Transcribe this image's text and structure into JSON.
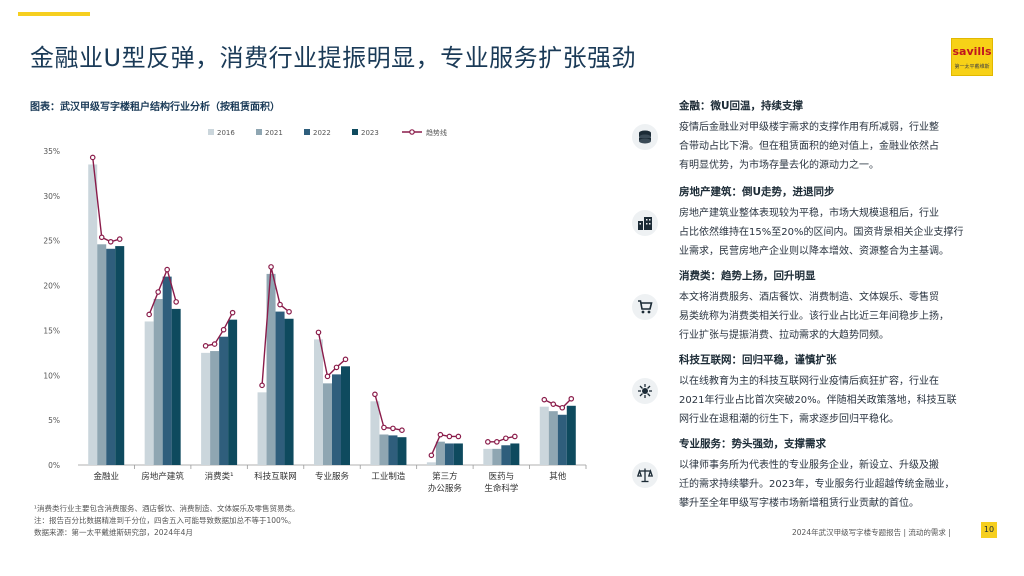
{
  "title": "金融业U型反弹，消费行业提振明显，专业服务扩张强劲",
  "logo": {
    "brand": "savills",
    "sub": "第一太平戴维斯"
  },
  "chart_caption": "图表：武汉甲级写字楼租户结构行业分析（按租赁面积）",
  "chart_data": {
    "type": "bar",
    "title": "图表：武汉甲级写字楼租户结构行业分析（按租赁面积）",
    "categories": [
      [
        "金融业"
      ],
      [
        "房地产建筑"
      ],
      [
        "消费类¹"
      ],
      [
        "科技互联网"
      ],
      [
        "专业服务"
      ],
      [
        "工业制造"
      ],
      [
        "第三方",
        "办公服务"
      ],
      [
        "医药与",
        "生命科学"
      ],
      [
        "其他"
      ]
    ],
    "series": [
      {
        "name": "2016",
        "color": "#cbd6dc",
        "values": [
          33.5,
          16.0,
          12.5,
          8.1,
          14.0,
          7.1,
          0.3,
          1.8,
          6.5
        ]
      },
      {
        "name": "2021",
        "color": "#8fa6b2",
        "values": [
          24.6,
          18.5,
          12.7,
          21.3,
          9.1,
          3.4,
          2.6,
          1.8,
          6.0
        ]
      },
      {
        "name": "2022",
        "color": "#2f5e7c",
        "values": [
          24.1,
          21.0,
          14.3,
          17.1,
          10.1,
          3.3,
          2.4,
          2.2,
          5.6
        ]
      },
      {
        "name": "2023",
        "color": "#0e4a5e",
        "values": [
          24.4,
          17.4,
          16.2,
          16.3,
          11.0,
          3.1,
          2.4,
          2.4,
          6.6
        ]
      }
    ],
    "trend": {
      "name": "趋势线",
      "color": "#8a1c4a"
    },
    "ylim": [
      0,
      35
    ],
    "yticks": [
      "0%",
      "5%",
      "10%",
      "15%",
      "20%",
      "25%",
      "30%",
      "35%"
    ],
    "grid": false,
    "legend_position": "top"
  },
  "notes": [
    "¹消费类行业主要包含消费服务、酒店餐饮、消费制造、文体娱乐及零售贸易类。",
    "注：报告百分比数据精准到千分位，四舍五入可能导致数据加总不等于100%。",
    "数据来源：第一太平戴维斯研究部，2024年4月"
  ],
  "sections": [
    {
      "icon": "coins-icon",
      "title": "金融：微U回温，持续支撑",
      "lines": [
        "疫情后金融业对甲级楼宇需求的支撑作用有所减弱，行业整",
        "合带动占比下滑。但在租赁面积的绝对值上，金融业依然占",
        "有明显优势，为市场存量去化的源动力之一。"
      ]
    },
    {
      "icon": "buildings-icon",
      "title": "房地产建筑：倒U走势，进退同步",
      "lines": [
        "房地产建筑业整体表现较为平稳，市场大规模退租后，行业",
        "占比依然维持在15%至20%的区间内。国资背景相关企业支撑行",
        "业需求，民营房地产企业则以降本增效、资源整合为主基调。"
      ]
    },
    {
      "icon": "cart-icon",
      "title": "消费类：趋势上扬，回升明显",
      "lines": [
        "本文将消费服务、酒店餐饮、消费制造、文体娱乐、零售贸",
        "易类统称为消费类相关行业。该行业占比近三年间稳步上扬，",
        "行业扩张与提振消费、拉动需求的大趋势同频。"
      ]
    },
    {
      "icon": "network-icon",
      "title": "科技互联网：回归平稳，谨慎扩张",
      "lines": [
        "以在线教育为主的科技互联网行业疫情后疯狂扩容，行业在",
        "2021年行业占比首次突破20%。伴随相关政策落地，科技互联",
        "网行业在退租潮的衍生下，需求逐步回归平稳化。"
      ]
    },
    {
      "icon": "scales-icon",
      "title": "专业服务：势头强劲，支撑需求",
      "lines": [
        "以律师事务所为代表性的专业服务企业，新设立、升级及搬",
        "迁的需求持续攀升。2023年，专业服务行业超越传统金融业，",
        "攀升至全年甲级写字楼市场新增租赁行业贡献的首位。"
      ]
    }
  ],
  "footer": "2024年武汉甲级写字楼专题报告 | 流动的需求 |",
  "page_number": "10"
}
